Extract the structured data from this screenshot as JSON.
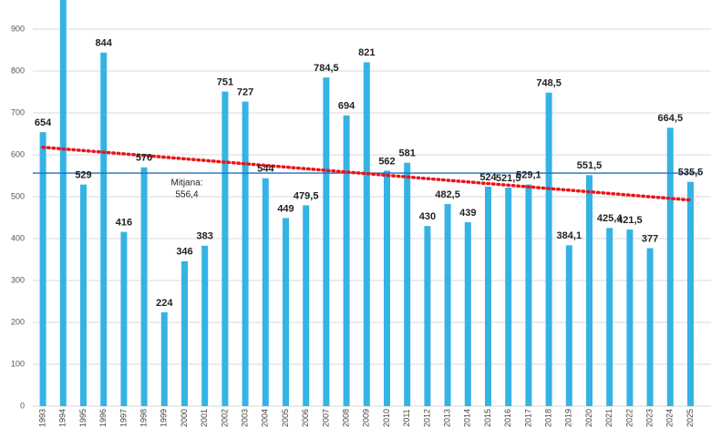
{
  "chart_data": {
    "type": "bar",
    "categories": [
      "1993",
      "1994",
      "1995",
      "1996",
      "1997",
      "1998",
      "1999",
      "2000",
      "2001",
      "2002",
      "2003",
      "2004",
      "2005",
      "2006",
      "2007",
      "2008",
      "2009",
      "2010",
      "2011",
      "2012",
      "2013",
      "2014",
      "2015",
      "2016",
      "2017",
      "2018",
      "2019",
      "2020",
      "2021",
      "2022",
      "2023",
      "2024",
      "2025"
    ],
    "values": [
      654,
      970,
      529,
      844,
      416,
      570,
      224,
      346,
      383,
      751,
      727,
      544,
      449,
      479.5,
      784.5,
      694,
      821,
      562,
      581,
      430,
      482.5,
      439,
      524,
      521.5,
      529.1,
      748.5,
      384.1,
      551.5,
      425.4,
      421.5,
      377,
      664.5,
      535.5
    ],
    "value_labels": [
      "654",
      null,
      "529",
      "844",
      "416",
      "570",
      "224",
      "346",
      "383",
      "751",
      "727",
      "544",
      "449",
      "479,5",
      "784,5",
      "694",
      "821",
      "562",
      "581",
      "430",
      "482,5",
      "439",
      "524",
      "521,5",
      "529,1",
      "748,5",
      "384,1",
      "551,5",
      "425,4",
      "421,5",
      "377",
      "664,5",
      "535,5"
    ],
    "color": "#35b3e5",
    "ylim": [
      0,
      970
    ],
    "yticks": [
      0,
      100,
      200,
      300,
      400,
      500,
      600,
      700,
      800,
      900
    ],
    "grid": true,
    "mean": {
      "label": "Mitjana:",
      "value": 556.4,
      "value_label": "556,4",
      "color": "#1f6fc4"
    },
    "trend": {
      "values": [
        618,
        492
      ],
      "color": "#e8151b"
    }
  }
}
